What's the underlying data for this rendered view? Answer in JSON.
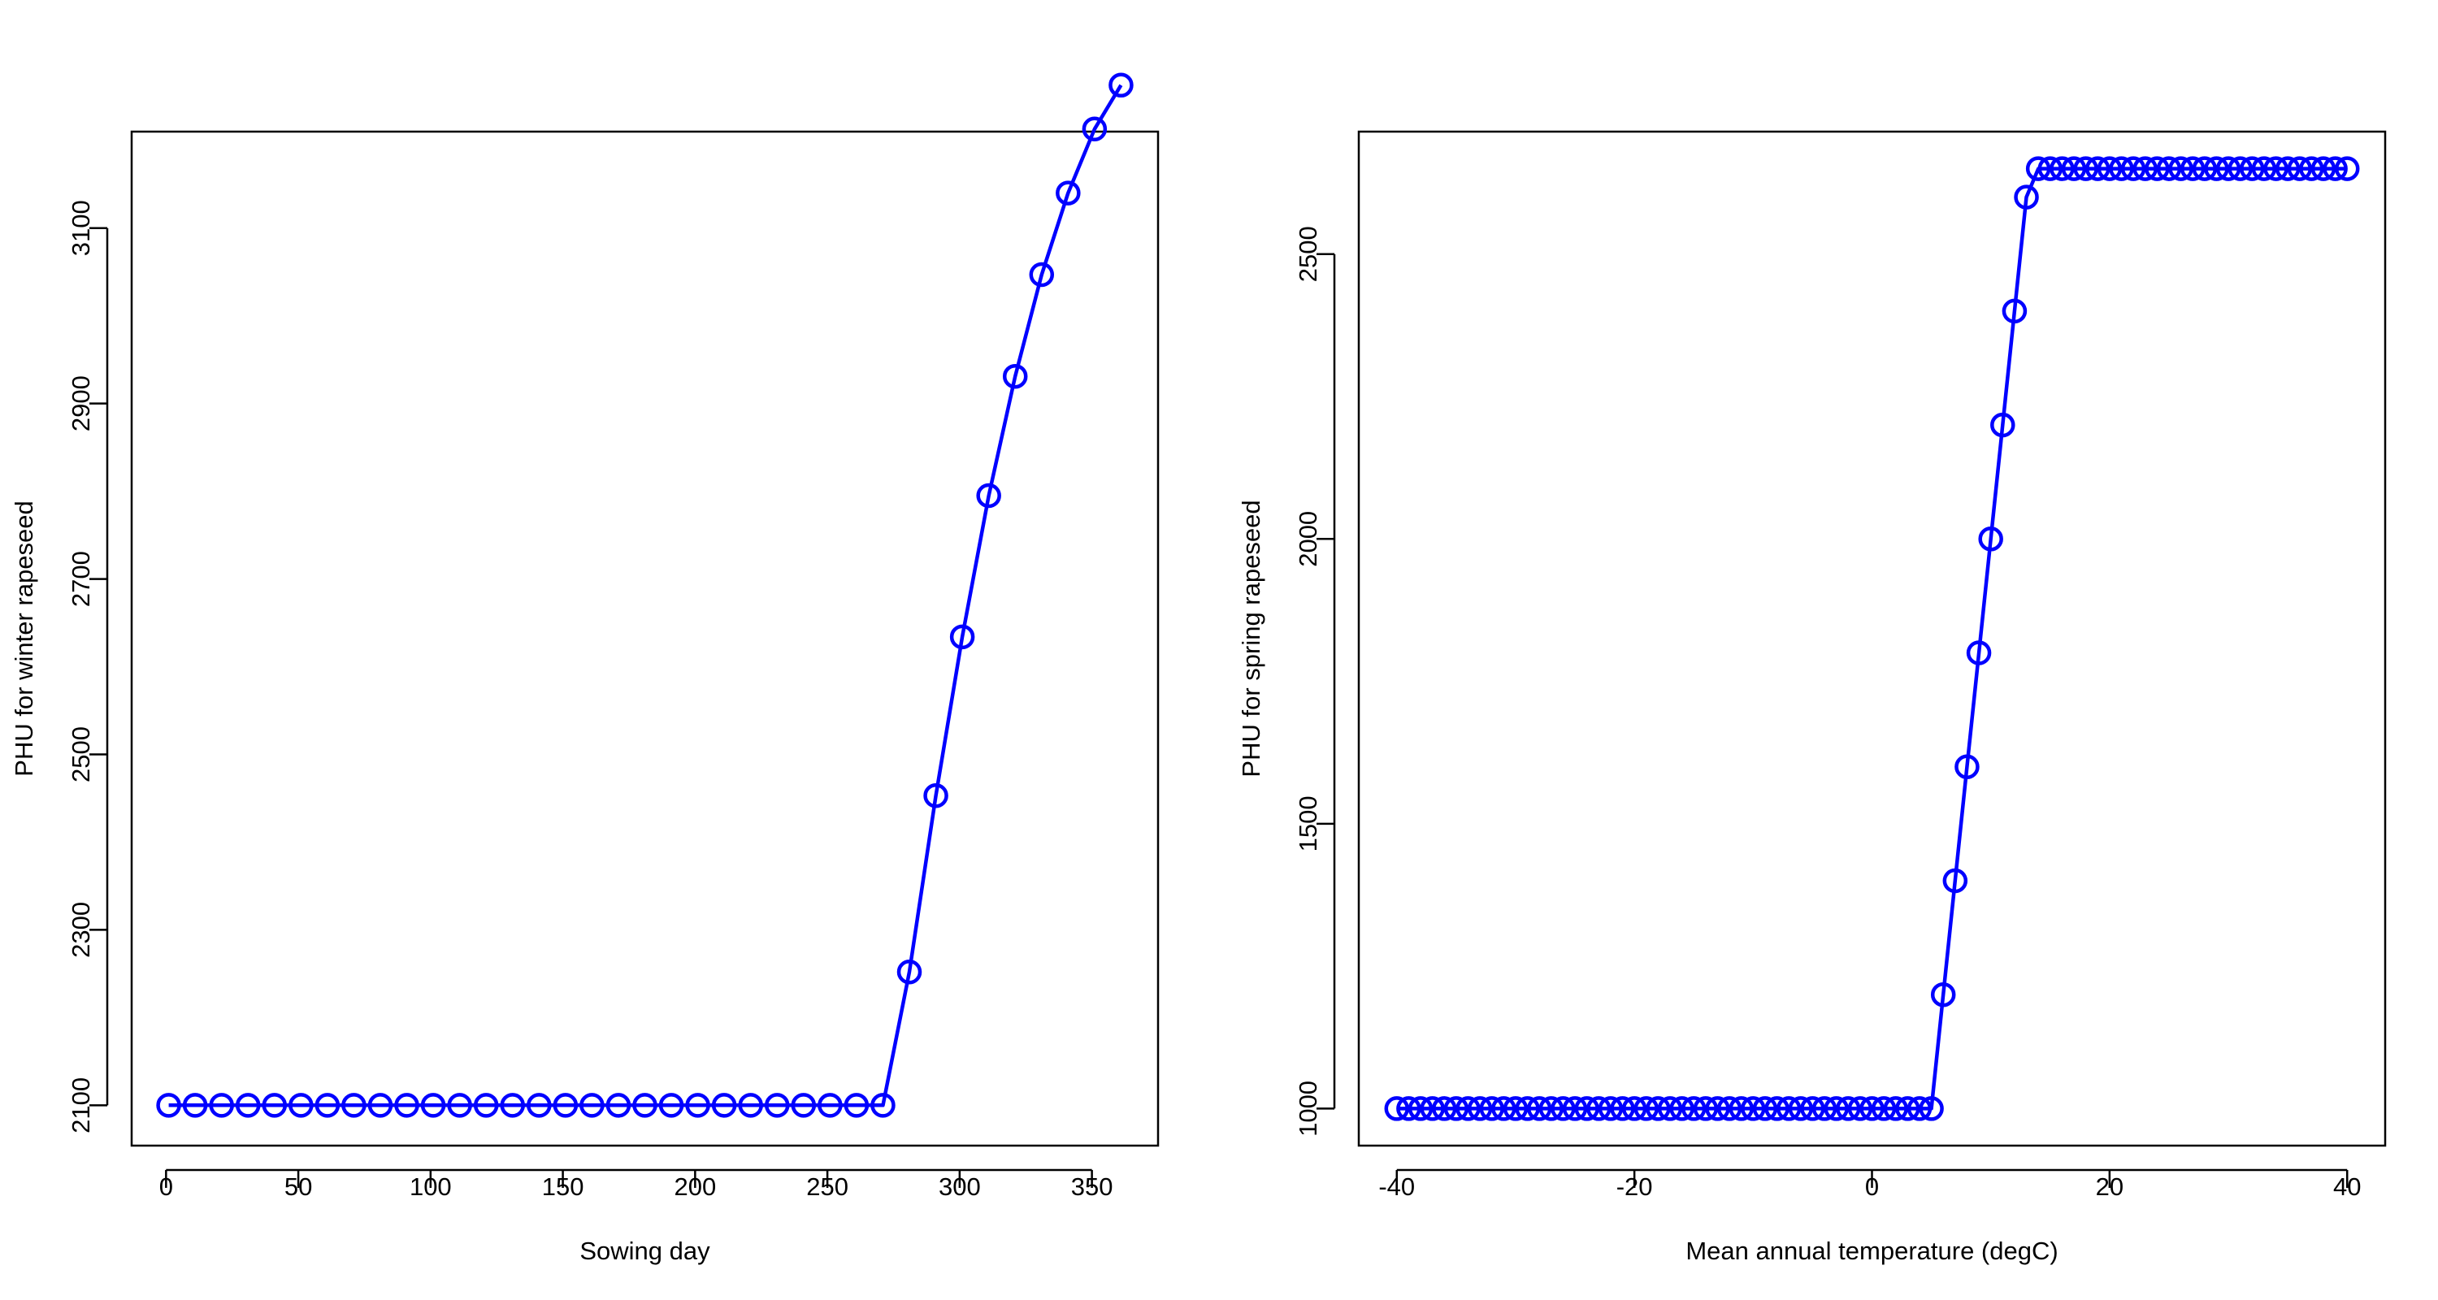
{
  "chart_data": [
    {
      "type": "line",
      "xlabel": "Sowing day",
      "ylabel": "PHU for winter rapeseed",
      "xlim": [
        -13,
        375
      ],
      "ylim": [
        2054,
        3210
      ],
      "xticks": [
        0,
        50,
        100,
        150,
        200,
        250,
        300,
        350
      ],
      "yticks": [
        2100,
        2300,
        2500,
        2700,
        2900,
        3100
      ],
      "grid": false,
      "series": [
        {
          "color": "#0000FF",
          "marker": "open-circle",
          "x": [
            1,
            11,
            21,
            31,
            41,
            51,
            61,
            71,
            81,
            91,
            101,
            111,
            121,
            131,
            141,
            151,
            161,
            171,
            181,
            191,
            201,
            211,
            221,
            231,
            241,
            251,
            261,
            271,
            281,
            291,
            301,
            311,
            321,
            331,
            341,
            351,
            361
          ],
          "y": [
            2100,
            2100,
            2100,
            2100,
            2100,
            2100,
            2100,
            2100,
            2100,
            2100,
            2100,
            2100,
            2100,
            2100,
            2100,
            2100,
            2100,
            2100,
            2100,
            2100,
            2100,
            2100,
            2100,
            2100,
            2100,
            2100,
            2100,
            2100,
            2252,
            2453,
            2634,
            2795,
            2931,
            3047,
            3140,
            3213,
            3263
          ]
        }
      ]
    },
    {
      "type": "line",
      "xlabel": "Mean annual temperature (degC)",
      "ylabel": "PHU for spring rapeseed",
      "xlim": [
        -43.2,
        43.2
      ],
      "ylim": [
        935,
        2715
      ],
      "xticks": [
        -40,
        -20,
        0,
        20,
        40
      ],
      "yticks": [
        1000,
        1500,
        2000,
        2500
      ],
      "grid": false,
      "series": [
        {
          "color": "#0000FF",
          "marker": "open-circle",
          "x": [
            -40,
            -39,
            -38,
            -37,
            -36,
            -35,
            -34,
            -33,
            -32,
            -31,
            -30,
            -29,
            -28,
            -27,
            -26,
            -25,
            -24,
            -23,
            -22,
            -21,
            -20,
            -19,
            -18,
            -17,
            -16,
            -15,
            -14,
            -13,
            -12,
            -11,
            -10,
            -9,
            -8,
            -7,
            -6,
            -5,
            -4,
            -3,
            -2,
            -1,
            0,
            1,
            2,
            3,
            4,
            5,
            6,
            7,
            8,
            9,
            10,
            11,
            12,
            13,
            14,
            15,
            16,
            17,
            18,
            19,
            20,
            21,
            22,
            23,
            24,
            25,
            26,
            27,
            28,
            29,
            30,
            31,
            32,
            33,
            34,
            35,
            36,
            37,
            38,
            39,
            40
          ],
          "y": [
            1000,
            1000,
            1000,
            1000,
            1000,
            1000,
            1000,
            1000,
            1000,
            1000,
            1000,
            1000,
            1000,
            1000,
            1000,
            1000,
            1000,
            1000,
            1000,
            1000,
            1000,
            1000,
            1000,
            1000,
            1000,
            1000,
            1000,
            1000,
            1000,
            1000,
            1000,
            1000,
            1000,
            1000,
            1000,
            1000,
            1000,
            1000,
            1000,
            1000,
            1000,
            1000,
            1000,
            1000,
            1000,
            1000,
            1200,
            1400,
            1600,
            1800,
            2000,
            2200,
            2400,
            2600,
            2650,
            2650,
            2650,
            2650,
            2650,
            2650,
            2650,
            2650,
            2650,
            2650,
            2650,
            2650,
            2650,
            2650,
            2650,
            2650,
            2650,
            2650,
            2650,
            2650,
            2650,
            2650,
            2650,
            2650,
            2650,
            2650,
            2650
          ]
        }
      ]
    }
  ]
}
